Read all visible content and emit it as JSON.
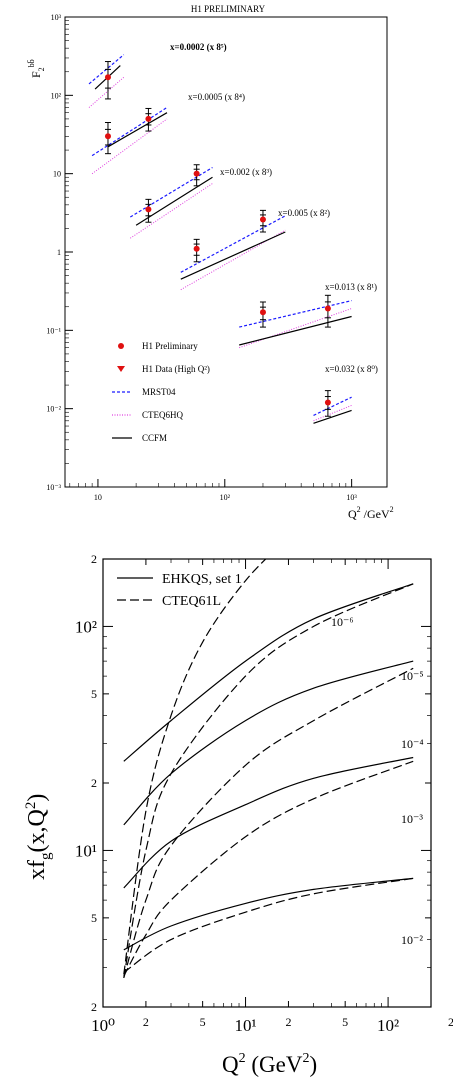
{
  "chart_data": [
    {
      "type": "scatter",
      "title": "H1 PRELIMINARY",
      "ylabel": "F₂^{bb̄}",
      "xlabel": "Q²/GeV²",
      "xscale": "log",
      "yscale": "log",
      "xlim": [
        5.5,
        1900
      ],
      "ylim": [
        0.001,
        1000
      ],
      "x_tick_labels": [
        "10",
        "10²",
        "10³"
      ],
      "y_tick_labels": [
        "10⁻³",
        "10⁻²",
        "10⁻¹",
        "1",
        "10",
        "10²",
        "10³"
      ],
      "legend": {
        "position": "bottom-left",
        "entries": [
          {
            "label": "H1 Preliminary",
            "symbol": "red-dot"
          },
          {
            "label": "H1 Data (High Q²)",
            "symbol": "red-triangle"
          },
          {
            "label": "MRST04",
            "symbol": "blue-dashed",
            "color": "#1a1aff"
          },
          {
            "label": "CTEQ6HQ",
            "symbol": "magenta-dotted",
            "color": "#e040e0"
          },
          {
            "label": "CCFM",
            "symbol": "black-solid",
            "color": "#000000"
          }
        ]
      },
      "bins": [
        {
          "label": "x=0.0002 (x 8⁵)",
          "bold": true,
          "points": [
            {
              "x": 12,
              "y": 170,
              "err_lo": 80,
              "err_hi": 100
            }
          ],
          "mrst04": [
            [
              8.5,
              140
            ],
            [
              16,
              330
            ]
          ],
          "cteq6hq": [
            [
              8.5,
              70
            ],
            [
              16,
              170
            ]
          ],
          "ccfm": [
            [
              9.5,
              120
            ],
            [
              15,
              240
            ]
          ]
        },
        {
          "label": "x=0.0005 (x 8⁴)",
          "points": [
            {
              "x": 12,
              "y": 30,
              "err_lo": 12,
              "err_hi": 15
            },
            {
              "x": 25,
              "y": 50,
              "err_lo": 15,
              "err_hi": 18
            }
          ],
          "mrst04": [
            [
              9,
              17
            ],
            [
              35,
              70
            ]
          ],
          "cteq6hq": [
            [
              9,
              10
            ],
            [
              35,
              50
            ]
          ],
          "ccfm": [
            [
              12,
              22
            ],
            [
              35,
              60
            ]
          ]
        },
        {
          "label": "x=0.002 (x 8³)",
          "points": [
            {
              "x": 25,
              "y": 3.5,
              "err_lo": 1.1,
              "err_hi": 1.2
            },
            {
              "x": 60,
              "y": 10,
              "err_lo": 3,
              "err_hi": 3
            }
          ],
          "mrst04": [
            [
              18,
              2.8
            ],
            [
              80,
              12
            ]
          ],
          "cteq6hq": [
            [
              18,
              1.5
            ],
            [
              80,
              7.5
            ]
          ],
          "ccfm": [
            [
              20,
              2.2
            ],
            [
              80,
              9
            ]
          ]
        },
        {
          "label": "x=0.005 (x 8²)",
          "points": [
            {
              "x": 60,
              "y": 1.1,
              "err_lo": 0.35,
              "err_hi": 0.35
            },
            {
              "x": 200,
              "y": 2.6,
              "err_lo": 0.8,
              "err_hi": 0.8
            }
          ],
          "mrst04": [
            [
              45,
              0.55
            ],
            [
              300,
              2.9
            ]
          ],
          "cteq6hq": [
            [
              45,
              0.33
            ],
            [
              300,
              1.9
            ]
          ],
          "ccfm": [
            [
              45,
              0.45
            ],
            [
              300,
              1.8
            ]
          ]
        },
        {
          "label": "x=0.013 (x 8¹)",
          "points": [
            {
              "x": 200,
              "y": 0.17,
              "err_lo": 0.06,
              "err_hi": 0.06
            },
            {
              "x": 650,
              "y": 0.19,
              "err_lo": 0.08,
              "err_hi": 0.09
            }
          ],
          "mrst04": [
            [
              130,
              0.11
            ],
            [
              1000,
              0.24
            ]
          ],
          "cteq6hq": [
            [
              130,
              0.06
            ],
            [
              1000,
              0.19
            ]
          ],
          "ccfm": [
            [
              130,
              0.065
            ],
            [
              1000,
              0.15
            ]
          ]
        },
        {
          "label": "x=0.032 (x 8⁰)",
          "points": [
            {
              "x": 650,
              "y": 0.012,
              "err_lo": 0.004,
              "err_hi": 0.005
            }
          ],
          "mrst04": [
            [
              500,
              0.0082
            ],
            [
              1000,
              0.014
            ]
          ],
          "cteq6hq": [
            [
              500,
              0.007
            ],
            [
              1000,
              0.011
            ]
          ],
          "ccfm": [
            [
              500,
              0.0065
            ],
            [
              1000,
              0.0095
            ]
          ]
        }
      ]
    },
    {
      "type": "line",
      "xlabel": "Q² (GeV²)",
      "ylabel": "xf_g(x,Q²)",
      "xscale": "log",
      "yscale": "log",
      "xlim": [
        1,
        200
      ],
      "ylim": [
        2,
        200
      ],
      "x_tick_labels": [
        "10⁰",
        "2",
        "5",
        "10¹",
        "2",
        "5",
        "10²",
        "2"
      ],
      "y_tick_labels": [
        "2",
        "10²",
        "5",
        "2",
        "10¹",
        "5",
        "2"
      ],
      "legend": {
        "position": "top-left",
        "entries": [
          {
            "label": "EHKQS, set 1",
            "style": "solid"
          },
          {
            "label": "CTEQ61L",
            "style": "dashed"
          }
        ]
      },
      "curve_labels": [
        "10⁻⁶",
        "10⁻⁵",
        "10⁻⁴",
        "10⁻³",
        "10⁻²"
      ],
      "series": [
        {
          "x_value": "10⁻⁶",
          "style": "solid",
          "points": [
            [
              1.4,
              25
            ],
            [
              3,
              38
            ],
            [
              10,
              70
            ],
            [
              30,
              108
            ],
            [
              150,
              155
            ]
          ]
        },
        {
          "x_value": "10⁻⁶",
          "style": "dashed",
          "points": [
            [
              1.4,
              2.8
            ],
            [
              2,
              15
            ],
            [
              3,
              40
            ],
            [
              5,
              85
            ],
            [
              10,
              160
            ],
            [
              20,
              250
            ]
          ]
        },
        {
          "x_value": "10⁻⁵",
          "style": "solid",
          "points": [
            [
              1.4,
              13
            ],
            [
              3,
              22
            ],
            [
              10,
              38
            ],
            [
              30,
              53
            ],
            [
              150,
              70
            ]
          ]
        },
        {
          "x_value": "10⁻⁵",
          "style": "dashed",
          "points": [
            [
              1.4,
              2.7
            ],
            [
              2,
              10
            ],
            [
              3,
              22
            ],
            [
              10,
              60
            ],
            [
              30,
              100
            ],
            [
              150,
              155
            ]
          ]
        },
        {
          "x_value": "10⁻⁴",
          "style": "solid",
          "points": [
            [
              1.4,
              6.8
            ],
            [
              3,
              11
            ],
            [
              10,
              16
            ],
            [
              30,
              21
            ],
            [
              150,
              26
            ]
          ]
        },
        {
          "x_value": "10⁻⁴",
          "style": "dashed",
          "points": [
            [
              1.4,
              2.7
            ],
            [
              2,
              6
            ],
            [
              3,
              10.5
            ],
            [
              10,
              24
            ],
            [
              30,
              38
            ],
            [
              150,
              65
            ]
          ]
        },
        {
          "x_value": "10⁻³",
          "style": "solid",
          "points": [
            [
              1.4,
              3.6
            ],
            [
              3,
              4.6
            ],
            [
              10,
              5.8
            ],
            [
              30,
              6.7
            ],
            [
              150,
              7.5
            ]
          ]
        },
        {
          "x_value": "10⁻³",
          "style": "dashed",
          "points": [
            [
              1.4,
              2.75
            ],
            [
              2,
              4.2
            ],
            [
              3,
              6
            ],
            [
              10,
              11.5
            ],
            [
              30,
              17
            ],
            [
              150,
              25
            ]
          ]
        },
        {
          "x_value": "10⁻²",
          "style": "dashed",
          "points": [
            [
              1.4,
              2.85
            ],
            [
              3,
              4
            ],
            [
              10,
              5.3
            ],
            [
              30,
              6.4
            ],
            [
              150,
              7.5
            ]
          ]
        }
      ]
    }
  ]
}
